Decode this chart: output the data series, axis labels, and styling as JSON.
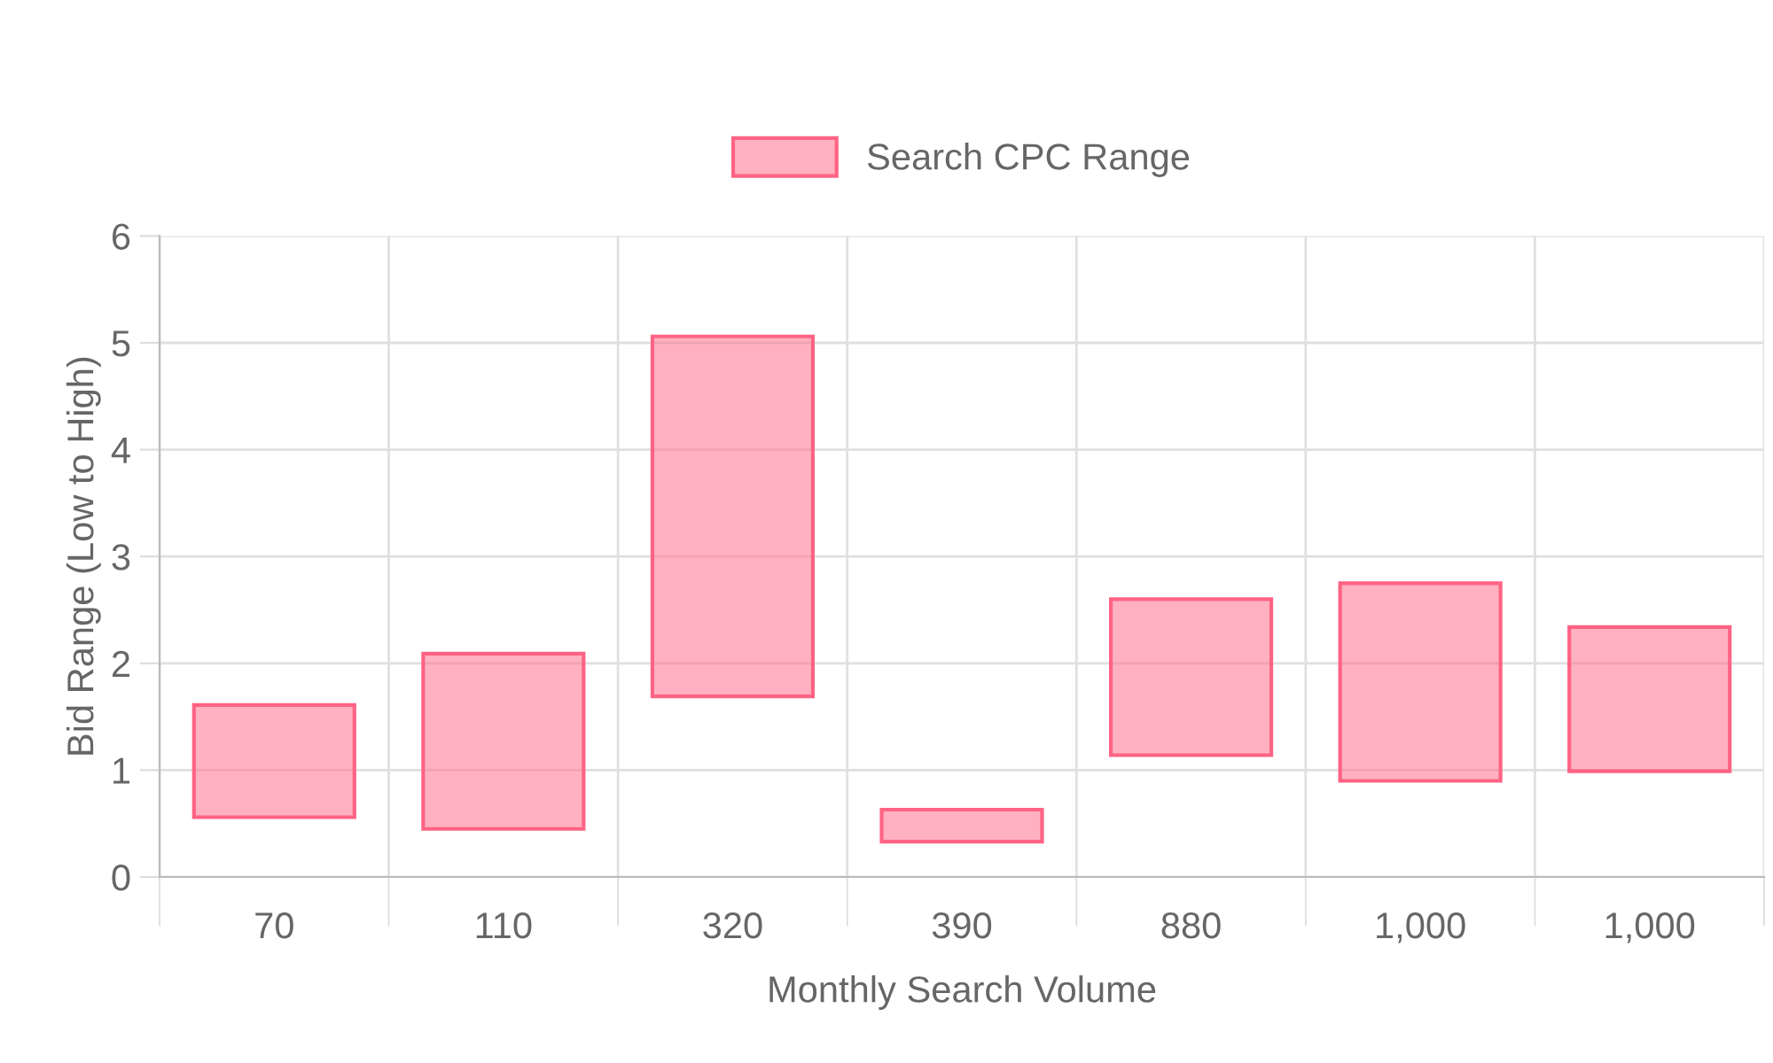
{
  "chart_data": {
    "type": "bar",
    "xlabel": "Monthly Search Volume",
    "ylabel": "Bid Range (Low to High)",
    "categories": [
      "70",
      "110",
      "320",
      "390",
      "880",
      "1,000",
      "1,000"
    ],
    "series": [
      {
        "name": "Search CPC Range",
        "color": "#ff6384",
        "values": [
          1.05,
          1.64,
          3.37,
          0.3,
          1.46,
          1.85,
          1.35
        ],
        "base": [
          0.56,
          0.45,
          1.69,
          0.33,
          1.14,
          0.9,
          0.99
        ]
      }
    ],
    "ylim": [
      0,
      6
    ],
    "yticks": [
      0,
      1,
      2,
      3,
      4,
      5,
      6
    ],
    "grid": true,
    "legend": "top"
  }
}
